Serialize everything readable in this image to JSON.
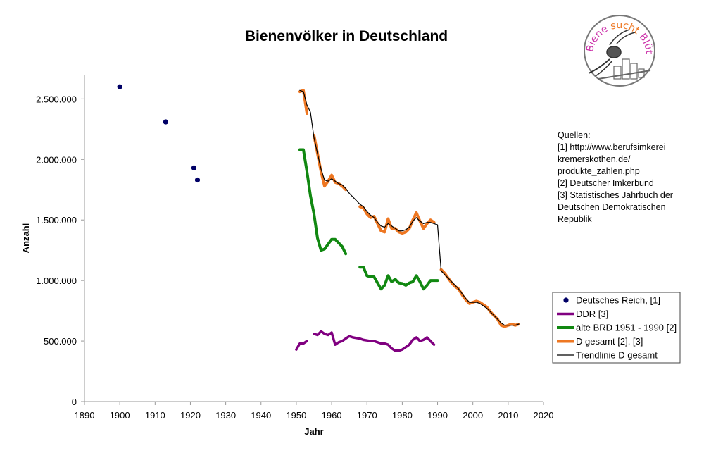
{
  "chart_data": {
    "type": "line",
    "title": "Bienenvölker in Deutschland",
    "xlabel": "Jahr",
    "ylabel": "Anzahl",
    "xlim": [
      1890,
      2020
    ],
    "ylim": [
      0,
      2700000
    ],
    "x_ticks": [
      "1890",
      "1900",
      "1910",
      "1920",
      "1930",
      "1940",
      "1950",
      "1960",
      "1970",
      "1980",
      "1990",
      "2000",
      "2010",
      "2020"
    ],
    "y_ticks": [
      {
        "value": 0,
        "label": "0"
      },
      {
        "value": 500000,
        "label": "500.000"
      },
      {
        "value": 1000000,
        "label": "1.000.000"
      },
      {
        "value": 1500000,
        "label": "1.500.000"
      },
      {
        "value": 2000000,
        "label": "2.000.000"
      },
      {
        "value": 2500000,
        "label": "2.500.000"
      }
    ],
    "grid": false,
    "legend_position": "right",
    "series": [
      {
        "name": "Deutsches Reich, [1]",
        "kind": "scatter",
        "color": "#000066",
        "points": [
          [
            1900,
            2600000
          ],
          [
            1913,
            2310000
          ],
          [
            1921,
            1930000
          ],
          [
            1922,
            1830000
          ]
        ]
      },
      {
        "name": "DDR [3]",
        "kind": "line",
        "color": "#800080",
        "segments": [
          [
            [
              1950,
              430000
            ],
            [
              1951,
              480000
            ],
            [
              1952,
              480000
            ],
            [
              1953,
              500000
            ]
          ],
          [
            [
              1955,
              560000
            ],
            [
              1956,
              550000
            ],
            [
              1957,
              580000
            ],
            [
              1958,
              560000
            ],
            [
              1959,
              550000
            ],
            [
              1960,
              570000
            ],
            [
              1961,
              470000
            ],
            [
              1962,
              490000
            ],
            [
              1963,
              500000
            ],
            [
              1964,
              520000
            ],
            [
              1965,
              540000
            ],
            [
              1966,
              530000
            ],
            [
              1967,
              525000
            ],
            [
              1968,
              520000
            ],
            [
              1969,
              510000
            ],
            [
              1970,
              505000
            ],
            [
              1971,
              500000
            ],
            [
              1972,
              500000
            ],
            [
              1973,
              490000
            ],
            [
              1974,
              480000
            ],
            [
              1975,
              480000
            ],
            [
              1976,
              470000
            ],
            [
              1977,
              440000
            ],
            [
              1978,
              420000
            ],
            [
              1979,
              420000
            ],
            [
              1980,
              430000
            ],
            [
              1981,
              450000
            ],
            [
              1982,
              470000
            ],
            [
              1983,
              510000
            ],
            [
              1984,
              530000
            ],
            [
              1985,
              500000
            ],
            [
              1986,
              510000
            ],
            [
              1987,
              530000
            ],
            [
              1988,
              500000
            ],
            [
              1989,
              470000
            ]
          ]
        ]
      },
      {
        "name": "alte BRD 1951 - 1990 [2]",
        "kind": "line",
        "color": "#118811",
        "segments": [
          [
            [
              1951,
              2080000
            ],
            [
              1952,
              2080000
            ],
            [
              1953,
              1900000
            ],
            [
              1954,
              1700000
            ],
            [
              1955,
              1550000
            ],
            [
              1956,
              1350000
            ],
            [
              1957,
              1250000
            ],
            [
              1958,
              1260000
            ],
            [
              1959,
              1300000
            ],
            [
              1960,
              1340000
            ],
            [
              1961,
              1340000
            ],
            [
              1962,
              1310000
            ],
            [
              1963,
              1280000
            ],
            [
              1964,
              1220000
            ]
          ],
          [
            [
              1968,
              1110000
            ],
            [
              1969,
              1110000
            ],
            [
              1970,
              1040000
            ],
            [
              1971,
              1030000
            ],
            [
              1972,
              1030000
            ],
            [
              1973,
              980000
            ],
            [
              1974,
              930000
            ],
            [
              1975,
              960000
            ],
            [
              1976,
              1040000
            ],
            [
              1977,
              990000
            ],
            [
              1978,
              1010000
            ],
            [
              1979,
              980000
            ],
            [
              1980,
              975000
            ],
            [
              1981,
              960000
            ],
            [
              1982,
              980000
            ],
            [
              1983,
              990000
            ],
            [
              1984,
              1040000
            ],
            [
              1985,
              990000
            ],
            [
              1986,
              930000
            ],
            [
              1987,
              960000
            ],
            [
              1988,
              1000000
            ],
            [
              1989,
              1000000
            ],
            [
              1990,
              1000000
            ]
          ]
        ]
      },
      {
        "name": "D gesamt [2], [3]",
        "kind": "line",
        "color": "#ee7722",
        "segments": [
          [
            [
              1951,
              2560000
            ],
            [
              1952,
              2570000
            ],
            [
              1953,
              2380000
            ]
          ],
          [
            [
              1955,
              2200000
            ],
            [
              1956,
              2050000
            ],
            [
              1957,
              1900000
            ],
            [
              1958,
              1780000
            ],
            [
              1959,
              1820000
            ],
            [
              1960,
              1870000
            ],
            [
              1961,
              1810000
            ],
            [
              1962,
              1800000
            ],
            [
              1963,
              1780000
            ],
            [
              1964,
              1750000
            ]
          ],
          [
            [
              1968,
              1610000
            ],
            [
              1969,
              1600000
            ],
            [
              1970,
              1550000
            ],
            [
              1971,
              1520000
            ],
            [
              1972,
              1530000
            ],
            [
              1973,
              1470000
            ],
            [
              1974,
              1410000
            ],
            [
              1975,
              1400000
            ],
            [
              1976,
              1510000
            ],
            [
              1977,
              1430000
            ],
            [
              1978,
              1430000
            ],
            [
              1979,
              1400000
            ],
            [
              1980,
              1390000
            ],
            [
              1981,
              1400000
            ],
            [
              1982,
              1430000
            ],
            [
              1983,
              1500000
            ],
            [
              1984,
              1560000
            ],
            [
              1985,
              1490000
            ],
            [
              1986,
              1430000
            ],
            [
              1987,
              1470000
            ],
            [
              1988,
              1500000
            ],
            [
              1989,
              1480000
            ]
          ],
          [
            [
              1991,
              1090000
            ],
            [
              1992,
              1060000
            ],
            [
              1993,
              1020000
            ],
            [
              1994,
              980000
            ],
            [
              1995,
              950000
            ],
            [
              1996,
              930000
            ],
            [
              1997,
              880000
            ],
            [
              1998,
              840000
            ],
            [
              1999,
              810000
            ],
            [
              2000,
              820000
            ],
            [
              2001,
              830000
            ],
            [
              2002,
              820000
            ],
            [
              2003,
              800000
            ],
            [
              2004,
              780000
            ],
            [
              2005,
              740000
            ],
            [
              2006,
              710000
            ],
            [
              2007,
              680000
            ],
            [
              2008,
              630000
            ],
            [
              2009,
              620000
            ],
            [
              2010,
              630000
            ],
            [
              2011,
              640000
            ],
            [
              2012,
              630000
            ],
            [
              2013,
              640000
            ]
          ]
        ]
      },
      {
        "name": "Trendlinie D gesamt",
        "kind": "line",
        "color": "#000000",
        "segments": [
          [
            [
              1951,
              2570000
            ],
            [
              1952,
              2560000
            ],
            [
              1953,
              2450000
            ],
            [
              1954,
              2390000
            ],
            [
              1955,
              2180000
            ],
            [
              1956,
              2050000
            ],
            [
              1957,
              1920000
            ],
            [
              1958,
              1830000
            ],
            [
              1959,
              1820000
            ],
            [
              1960,
              1840000
            ],
            [
              1961,
              1820000
            ],
            [
              1962,
              1800000
            ],
            [
              1963,
              1790000
            ],
            [
              1964,
              1760000
            ],
            [
              1965,
              1720000
            ],
            [
              1966,
              1690000
            ],
            [
              1967,
              1660000
            ],
            [
              1968,
              1630000
            ],
            [
              1969,
              1610000
            ],
            [
              1970,
              1570000
            ],
            [
              1971,
              1540000
            ],
            [
              1972,
              1520000
            ],
            [
              1973,
              1480000
            ],
            [
              1974,
              1450000
            ],
            [
              1975,
              1440000
            ],
            [
              1976,
              1470000
            ],
            [
              1977,
              1450000
            ],
            [
              1978,
              1430000
            ],
            [
              1979,
              1410000
            ],
            [
              1980,
              1410000
            ],
            [
              1981,
              1420000
            ],
            [
              1982,
              1440000
            ],
            [
              1983,
              1490000
            ],
            [
              1984,
              1520000
            ],
            [
              1985,
              1490000
            ],
            [
              1986,
              1470000
            ],
            [
              1987,
              1480000
            ],
            [
              1988,
              1480000
            ],
            [
              1989,
              1470000
            ],
            [
              1990,
              1460000
            ],
            [
              1991,
              1080000
            ],
            [
              1992,
              1050000
            ],
            [
              1993,
              1020000
            ],
            [
              1994,
              990000
            ],
            [
              1995,
              960000
            ],
            [
              1996,
              930000
            ],
            [
              1997,
              890000
            ],
            [
              1998,
              850000
            ],
            [
              1999,
              820000
            ],
            [
              2000,
              820000
            ],
            [
              2001,
              820000
            ],
            [
              2002,
              810000
            ],
            [
              2003,
              790000
            ],
            [
              2004,
              770000
            ],
            [
              2005,
              740000
            ],
            [
              2006,
              710000
            ],
            [
              2007,
              680000
            ],
            [
              2008,
              650000
            ],
            [
              2009,
              630000
            ],
            [
              2010,
              630000
            ],
            [
              2011,
              630000
            ],
            [
              2012,
              630000
            ],
            [
              2013,
              640000
            ]
          ]
        ]
      }
    ]
  },
  "sources": {
    "lines": [
      "Quellen:",
      "[1] http://www.berufsimkerei",
      "kremerskothen.de/",
      "produkte_zahlen.php",
      "[2] Deutscher Imkerbund",
      "[3] Statistisches Jahrbuch der",
      "Deutschen Demokratischen",
      "Republik"
    ]
  },
  "logo": {
    "text": "Biene sucht Blüte",
    "colors": {
      "biene": "#cc33aa",
      "sucht": "#ee7722",
      "bluete": "#cc33aa"
    }
  }
}
